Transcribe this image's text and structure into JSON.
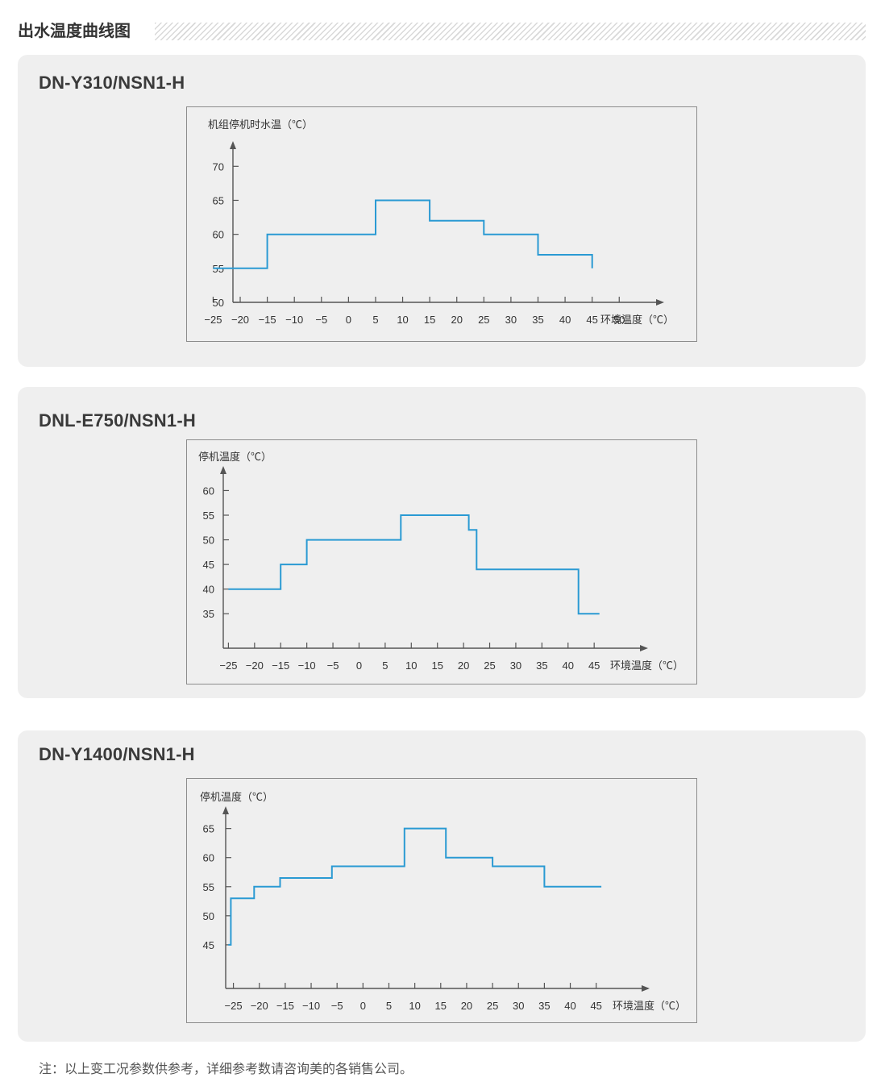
{
  "section_title": "出水温度曲线图",
  "footnote": "注：以上变工况参数供参考，详细参考数请咨询美的各销售公司。",
  "colors": {
    "line": "#2a9ad3",
    "axis": "#555555",
    "panel": "#efefef",
    "border": "#8c8c8c"
  },
  "chart_data": [
    {
      "type": "line",
      "step": true,
      "title": "DN-Y310/NSN1-H",
      "ylabel": "机组停机时水温（℃）",
      "xlabel": "环境温度（℃）",
      "x_ticks": [
        -25,
        -20,
        -15,
        -10,
        -5,
        0,
        5,
        10,
        15,
        20,
        25,
        30,
        35,
        40,
        45,
        50
      ],
      "y_ticks": [
        50,
        55,
        60,
        65,
        70
      ],
      "xlim": [
        -27,
        58
      ],
      "ylim": [
        50,
        73
      ],
      "series": [
        {
          "x": [
            -25,
            -15,
            -15,
            5,
            5,
            15,
            15,
            25,
            25,
            35,
            35,
            45,
            45
          ],
          "y": [
            55,
            55,
            60,
            60,
            65,
            65,
            62,
            62,
            60,
            60,
            57,
            57,
            55
          ]
        }
      ]
    },
    {
      "type": "line",
      "step": true,
      "title": "DNL-E750/NSN1-H",
      "ylabel": "停机温度（℃）",
      "xlabel": "环境温度（℃）",
      "x_ticks": [
        -25,
        -20,
        -15,
        -10,
        -5,
        0,
        5,
        10,
        15,
        20,
        25,
        30,
        35,
        40,
        45
      ],
      "y_ticks": [
        35,
        40,
        45,
        50,
        55,
        60
      ],
      "xlim": [
        -30,
        55
      ],
      "ylim": [
        28,
        64
      ],
      "series": [
        {
          "x": [
            -25,
            -15,
            -15,
            -10,
            -10,
            8,
            8,
            21,
            21,
            22.5,
            22.5,
            42,
            42,
            46
          ],
          "y": [
            40,
            40,
            45,
            45,
            50,
            50,
            55,
            55,
            52,
            52,
            44,
            44,
            35,
            35
          ]
        }
      ]
    },
    {
      "type": "line",
      "step": true,
      "title": "DN-Y1400/NSN1-H",
      "ylabel": "停机温度（℃）",
      "xlabel": "环境温度（℃）",
      "x_ticks": [
        -25,
        -20,
        -15,
        -10,
        -5,
        0,
        5,
        10,
        15,
        20,
        25,
        30,
        35,
        40,
        45
      ],
      "y_ticks": [
        45,
        50,
        55,
        60,
        65
      ],
      "xlim": [
        -31,
        55
      ],
      "ylim": [
        37.5,
        68
      ],
      "series": [
        {
          "x": [
            -26,
            -25.5,
            -25.5,
            -21,
            -21,
            -16,
            -16,
            -6,
            -6,
            8,
            8,
            16,
            16,
            25,
            25,
            35,
            35,
            46
          ],
          "y": [
            45,
            45,
            53,
            53,
            55,
            55,
            56.5,
            56.5,
            58.5,
            58.5,
            65,
            65,
            60,
            60,
            58.5,
            58.5,
            55,
            55
          ]
        }
      ]
    }
  ]
}
